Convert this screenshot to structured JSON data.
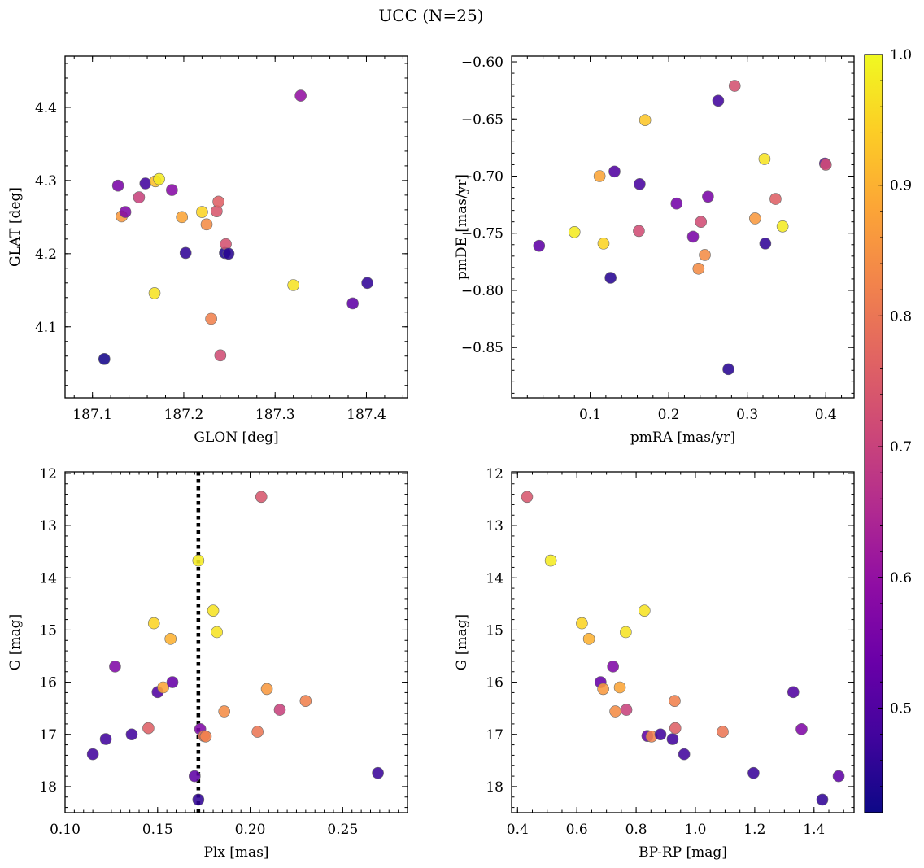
{
  "figure": {
    "title": "UCC (N=25)",
    "colorbar": {
      "min": 0.42,
      "max": 1.0,
      "ticks": [
        "0.5",
        "0.6",
        "0.7",
        "0.8",
        "0.9",
        "1.0"
      ],
      "colormap": "plasma"
    }
  },
  "chart_data": [
    {
      "type": "scatter",
      "panel": "top-left",
      "xlabel": "GLON [deg]",
      "ylabel": "GLAT [deg]",
      "xlim": [
        187.07,
        187.445
      ],
      "ylim": [
        4.003,
        4.47
      ],
      "xticks": [
        "187.1",
        "187.2",
        "187.3",
        "187.4"
      ],
      "yticks": [
        "4.1",
        "4.2",
        "4.3",
        "4.4"
      ],
      "points": [
        {
          "x": 187.113,
          "y": 4.056,
          "c": 0.43
        },
        {
          "x": 187.128,
          "y": 4.293,
          "c": 0.56
        },
        {
          "x": 187.132,
          "y": 4.251,
          "c": 0.86
        },
        {
          "x": 187.136,
          "y": 4.257,
          "c": 0.57
        },
        {
          "x": 187.151,
          "y": 4.277,
          "c": 0.7
        },
        {
          "x": 187.158,
          "y": 4.296,
          "c": 0.48
        },
        {
          "x": 187.168,
          "y": 4.146,
          "c": 0.97
        },
        {
          "x": 187.169,
          "y": 4.299,
          "c": 0.92
        },
        {
          "x": 187.173,
          "y": 4.302,
          "c": 0.98
        },
        {
          "x": 187.187,
          "y": 4.287,
          "c": 0.58
        },
        {
          "x": 187.198,
          "y": 4.25,
          "c": 0.88
        },
        {
          "x": 187.202,
          "y": 4.201,
          "c": 0.46
        },
        {
          "x": 187.22,
          "y": 4.257,
          "c": 0.95
        },
        {
          "x": 187.225,
          "y": 4.24,
          "c": 0.84
        },
        {
          "x": 187.23,
          "y": 4.111,
          "c": 0.82
        },
        {
          "x": 187.236,
          "y": 4.258,
          "c": 0.74
        },
        {
          "x": 187.238,
          "y": 4.271,
          "c": 0.76
        },
        {
          "x": 187.24,
          "y": 4.061,
          "c": 0.72
        },
        {
          "x": 187.245,
          "y": 4.201,
          "c": 0.44
        },
        {
          "x": 187.246,
          "y": 4.213,
          "c": 0.73
        },
        {
          "x": 187.249,
          "y": 4.2,
          "c": 0.45
        },
        {
          "x": 187.32,
          "y": 4.157,
          "c": 0.97
        },
        {
          "x": 187.328,
          "y": 4.416,
          "c": 0.6
        },
        {
          "x": 187.385,
          "y": 4.132,
          "c": 0.52
        },
        {
          "x": 187.401,
          "y": 4.16,
          "c": 0.46
        }
      ]
    },
    {
      "type": "scatter",
      "panel": "top-right",
      "xlabel": "pmRA [mas/yr]",
      "ylabel": "pmDE [mas/yr]",
      "xlim": [
        0.0,
        0.436
      ],
      "ylim": [
        -0.894,
        -0.595
      ],
      "xticks": [
        "0.1",
        "0.2",
        "0.3",
        "0.4"
      ],
      "yticks": [
        "−0.60",
        "−0.65",
        "−0.70",
        "−0.75",
        "−0.80",
        "−0.85"
      ],
      "points": [
        {
          "x": 0.035,
          "y": -0.761,
          "c": 0.52
        },
        {
          "x": 0.08,
          "y": -0.749,
          "c": 0.98
        },
        {
          "x": 0.112,
          "y": -0.7,
          "c": 0.88
        },
        {
          "x": 0.117,
          "y": -0.759,
          "c": 0.95
        },
        {
          "x": 0.126,
          "y": -0.789,
          "c": 0.45
        },
        {
          "x": 0.131,
          "y": -0.696,
          "c": 0.5
        },
        {
          "x": 0.162,
          "y": -0.748,
          "c": 0.72
        },
        {
          "x": 0.163,
          "y": -0.707,
          "c": 0.49
        },
        {
          "x": 0.17,
          "y": -0.651,
          "c": 0.93
        },
        {
          "x": 0.21,
          "y": -0.724,
          "c": 0.55
        },
        {
          "x": 0.231,
          "y": -0.753,
          "c": 0.56
        },
        {
          "x": 0.238,
          "y": -0.781,
          "c": 0.84
        },
        {
          "x": 0.241,
          "y": -0.74,
          "c": 0.72
        },
        {
          "x": 0.246,
          "y": -0.769,
          "c": 0.84
        },
        {
          "x": 0.25,
          "y": -0.718,
          "c": 0.56
        },
        {
          "x": 0.263,
          "y": -0.634,
          "c": 0.48
        },
        {
          "x": 0.276,
          "y": -0.869,
          "c": 0.45
        },
        {
          "x": 0.284,
          "y": -0.621,
          "c": 0.73
        },
        {
          "x": 0.31,
          "y": -0.737,
          "c": 0.86
        },
        {
          "x": 0.322,
          "y": -0.685,
          "c": 0.97
        },
        {
          "x": 0.323,
          "y": -0.759,
          "c": 0.46
        },
        {
          "x": 0.336,
          "y": -0.72,
          "c": 0.76
        },
        {
          "x": 0.345,
          "y": -0.744,
          "c": 0.98
        },
        {
          "x": 0.399,
          "y": -0.689,
          "c": 0.52
        },
        {
          "x": 0.4,
          "y": -0.69,
          "c": 0.72
        }
      ]
    },
    {
      "type": "scatter",
      "panel": "bottom-left",
      "xlabel": "Plx [mas]",
      "ylabel": "G [mag]",
      "xlim": [
        0.1,
        0.285
      ],
      "ylim": [
        18.5,
        11.97
      ],
      "inverted_y": true,
      "xticks": [
        "0.10",
        "0.15",
        "0.20",
        "0.25"
      ],
      "yticks": [
        "12",
        "13",
        "14",
        "15",
        "16",
        "17",
        "18"
      ],
      "vline": 0.172,
      "points": [
        {
          "x": 0.115,
          "y": 17.38,
          "c": 0.48
        },
        {
          "x": 0.122,
          "y": 17.09,
          "c": 0.48
        },
        {
          "x": 0.127,
          "y": 15.7,
          "c": 0.57
        },
        {
          "x": 0.136,
          "y": 17.0,
          "c": 0.48
        },
        {
          "x": 0.145,
          "y": 16.88,
          "c": 0.76
        },
        {
          "x": 0.148,
          "y": 14.87,
          "c": 0.95
        },
        {
          "x": 0.15,
          "y": 16.19,
          "c": 0.5
        },
        {
          "x": 0.153,
          "y": 16.1,
          "c": 0.88
        },
        {
          "x": 0.157,
          "y": 15.17,
          "c": 0.9
        },
        {
          "x": 0.158,
          "y": 16.0,
          "c": 0.53
        },
        {
          "x": 0.17,
          "y": 17.8,
          "c": 0.52
        },
        {
          "x": 0.172,
          "y": 13.67,
          "c": 0.98
        },
        {
          "x": 0.172,
          "y": 18.25,
          "c": 0.46
        },
        {
          "x": 0.173,
          "y": 16.9,
          "c": 0.57
        },
        {
          "x": 0.175,
          "y": 17.03,
          "c": 0.8
        },
        {
          "x": 0.176,
          "y": 17.04,
          "c": 0.82
        },
        {
          "x": 0.18,
          "y": 14.63,
          "c": 0.97
        },
        {
          "x": 0.182,
          "y": 15.04,
          "c": 0.97
        },
        {
          "x": 0.186,
          "y": 16.56,
          "c": 0.84
        },
        {
          "x": 0.204,
          "y": 16.95,
          "c": 0.8
        },
        {
          "x": 0.206,
          "y": 12.45,
          "c": 0.74
        },
        {
          "x": 0.209,
          "y": 16.13,
          "c": 0.86
        },
        {
          "x": 0.216,
          "y": 16.53,
          "c": 0.7
        },
        {
          "x": 0.23,
          "y": 16.36,
          "c": 0.82
        },
        {
          "x": 0.269,
          "y": 17.74,
          "c": 0.47
        }
      ]
    },
    {
      "type": "scatter",
      "panel": "bottom-right",
      "xlabel": "BP-RP [mag]",
      "ylabel": "G [mag]",
      "xlim": [
        0.38,
        1.535
      ],
      "ylim": [
        18.5,
        11.97
      ],
      "inverted_y": true,
      "xticks": [
        "0.4",
        "0.6",
        "0.8",
        "1.0",
        "1.2",
        "1.4"
      ],
      "yticks": [
        "12",
        "13",
        "14",
        "15",
        "16",
        "17",
        "18"
      ],
      "points": [
        {
          "x": 0.432,
          "y": 12.45,
          "c": 0.74
        },
        {
          "x": 0.512,
          "y": 13.67,
          "c": 0.98
        },
        {
          "x": 0.617,
          "y": 14.87,
          "c": 0.95
        },
        {
          "x": 0.641,
          "y": 15.17,
          "c": 0.9
        },
        {
          "x": 0.68,
          "y": 16.0,
          "c": 0.53
        },
        {
          "x": 0.689,
          "y": 16.13,
          "c": 0.86
        },
        {
          "x": 0.722,
          "y": 15.7,
          "c": 0.57
        },
        {
          "x": 0.73,
          "y": 16.56,
          "c": 0.84
        },
        {
          "x": 0.745,
          "y": 16.1,
          "c": 0.88
        },
        {
          "x": 0.765,
          "y": 15.04,
          "c": 0.97
        },
        {
          "x": 0.767,
          "y": 16.53,
          "c": 0.7
        },
        {
          "x": 0.828,
          "y": 14.63,
          "c": 0.97
        },
        {
          "x": 0.838,
          "y": 17.03,
          "c": 0.52
        },
        {
          "x": 0.852,
          "y": 17.04,
          "c": 0.82
        },
        {
          "x": 0.882,
          "y": 17.0,
          "c": 0.48
        },
        {
          "x": 0.923,
          "y": 17.09,
          "c": 0.48
        },
        {
          "x": 0.93,
          "y": 16.36,
          "c": 0.82
        },
        {
          "x": 0.932,
          "y": 16.88,
          "c": 0.76
        },
        {
          "x": 0.962,
          "y": 17.38,
          "c": 0.48
        },
        {
          "x": 1.092,
          "y": 16.95,
          "c": 0.8
        },
        {
          "x": 1.196,
          "y": 17.74,
          "c": 0.47
        },
        {
          "x": 1.33,
          "y": 16.19,
          "c": 0.5
        },
        {
          "x": 1.358,
          "y": 16.9,
          "c": 0.57
        },
        {
          "x": 1.428,
          "y": 18.25,
          "c": 0.46
        },
        {
          "x": 1.483,
          "y": 17.8,
          "c": 0.52
        }
      ]
    }
  ]
}
